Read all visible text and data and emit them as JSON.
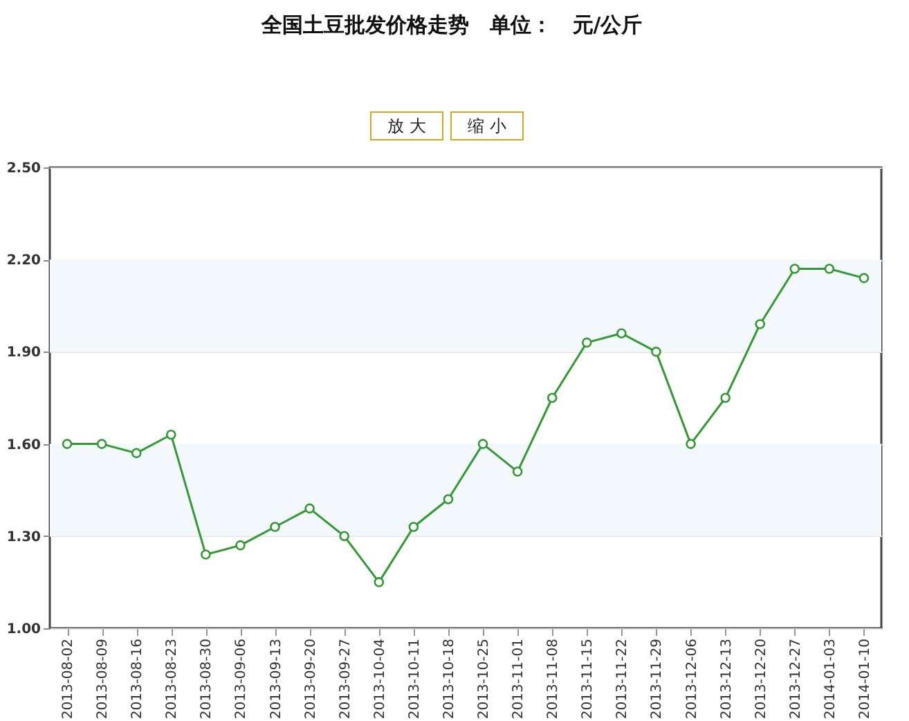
{
  "chart_data": {
    "type": "line",
    "title": "全国土豆批发价格走势　单位：　元/公斤",
    "annotations": [
      "放 大",
      "缩 小"
    ],
    "categories": [
      "2013-08-02",
      "2013-08-09",
      "2013-08-16",
      "2013-08-23",
      "2013-08-30",
      "2013-09-06",
      "2013-09-13",
      "2013-09-20",
      "2013-09-27",
      "2013-10-04",
      "2013-10-11",
      "2013-10-18",
      "2013-10-25",
      "2013-11-01",
      "2013-11-08",
      "2013-11-15",
      "2013-11-22",
      "2013-11-29",
      "2013-12-06",
      "2013-12-13",
      "2013-12-20",
      "2013-12-27",
      "2014-01-03",
      "2014-01-10"
    ],
    "series": [
      {
        "color": "#339933",
        "values": [
          1.6,
          1.6,
          1.57,
          1.63,
          1.24,
          1.27,
          1.33,
          1.39,
          1.3,
          1.15,
          1.33,
          1.42,
          1.6,
          1.51,
          1.75,
          1.93,
          1.96,
          1.9,
          1.6,
          1.75,
          1.99,
          2.17,
          2.17,
          2.14
        ]
      }
    ],
    "ylim": [
      1.0,
      2.5
    ],
    "yticks": [
      {
        "value": 1.0,
        "label": "1.00"
      },
      {
        "value": 1.3,
        "label": "1.30"
      },
      {
        "value": 1.6,
        "label": "1.60"
      },
      {
        "value": 1.9,
        "label": "1.90"
      },
      {
        "value": 2.2,
        "label": "2.20"
      },
      {
        "value": 2.5,
        "label": "2.50"
      }
    ],
    "bands": [
      {
        "axis": "y",
        "from": 1.3,
        "to": 1.6,
        "color": "#f3f8fd"
      },
      {
        "axis": "y",
        "from": 1.9,
        "to": 2.2,
        "color": "#f3f8fd"
      }
    ],
    "grid": "y",
    "marker": "circle",
    "line_style": "solid"
  }
}
